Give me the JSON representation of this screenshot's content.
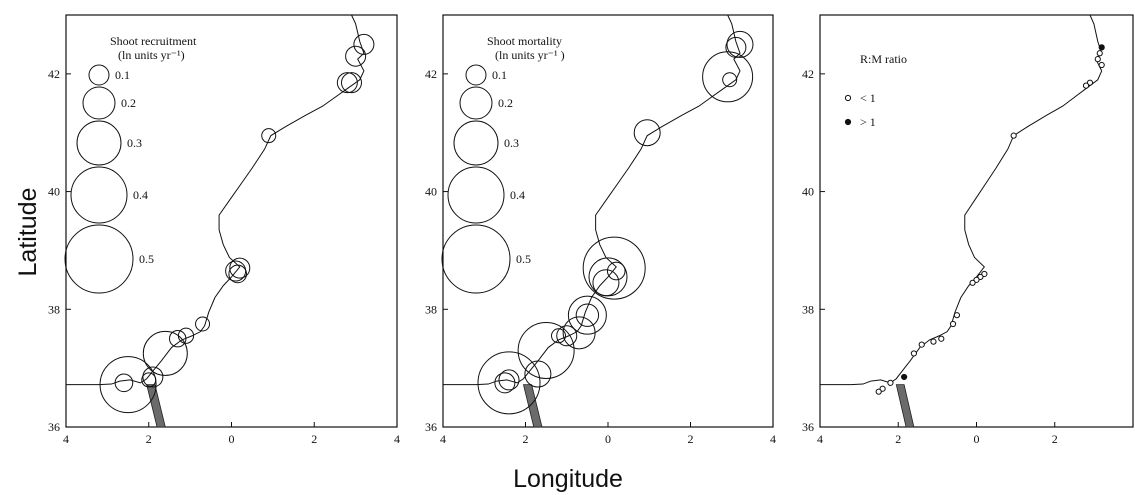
{
  "figure": {
    "ylabel": "Latitude",
    "xlabel": "Longitude"
  },
  "chart_data": [
    {
      "type": "scatter",
      "panel": "recruitment",
      "legend_title": "Shoot recruitment",
      "legend_subtitle": "(ln units yr⁻¹)",
      "size_legend": [
        0.1,
        0.2,
        0.3,
        0.4,
        0.5
      ],
      "x_ticks": [
        "4",
        "2",
        "0",
        "2",
        "4"
      ],
      "y_ticks": [
        "36",
        "38",
        "40",
        "42"
      ],
      "xlim": [
        -4,
        4
      ],
      "ylim": [
        36,
        43
      ],
      "points": [
        {
          "lon": 3.2,
          "lat": 42.5,
          "value": 0.1
        },
        {
          "lon": 3.0,
          "lat": 42.3,
          "value": 0.1
        },
        {
          "lon": 2.8,
          "lat": 41.85,
          "value": 0.1
        },
        {
          "lon": 2.9,
          "lat": 41.85,
          "value": 0.1
        },
        {
          "lon": 0.9,
          "lat": 40.95,
          "value": 0.05
        },
        {
          "lon": 0.2,
          "lat": 38.7,
          "value": 0.1
        },
        {
          "lon": 0.1,
          "lat": 38.65,
          "value": 0.1
        },
        {
          "lon": 0.15,
          "lat": 38.6,
          "value": 0.08
        },
        {
          "lon": -0.7,
          "lat": 37.75,
          "value": 0.05
        },
        {
          "lon": -1.1,
          "lat": 37.55,
          "value": 0.06
        },
        {
          "lon": -1.3,
          "lat": 37.5,
          "value": 0.07
        },
        {
          "lon": -1.6,
          "lat": 37.25,
          "value": 0.3
        },
        {
          "lon": -1.9,
          "lat": 36.85,
          "value": 0.1
        },
        {
          "lon": -2.0,
          "lat": 36.8,
          "value": 0.05
        },
        {
          "lon": -2.5,
          "lat": 36.72,
          "value": 0.4
        },
        {
          "lon": -2.6,
          "lat": 36.75,
          "value": 0.08
        }
      ]
    },
    {
      "type": "scatter",
      "panel": "mortality",
      "legend_title": "Shoot mortality",
      "legend_subtitle": "(ln units yr⁻¹ )",
      "size_legend": [
        0.1,
        0.2,
        0.3,
        0.4,
        0.5
      ],
      "x_ticks": [
        "4",
        "2",
        "0",
        "2",
        "4"
      ],
      "y_ticks": [
        "36",
        "38",
        "40",
        "42"
      ],
      "xlim": [
        -4,
        4
      ],
      "ylim": [
        36,
        43
      ],
      "points": [
        {
          "lon": 3.2,
          "lat": 42.5,
          "value": 0.15
        },
        {
          "lon": 3.1,
          "lat": 42.45,
          "value": 0.1
        },
        {
          "lon": 2.9,
          "lat": 41.95,
          "value": 0.35
        },
        {
          "lon": 2.95,
          "lat": 41.9,
          "value": 0.05
        },
        {
          "lon": 0.95,
          "lat": 41.0,
          "value": 0.15
        },
        {
          "lon": 0.15,
          "lat": 38.7,
          "value": 0.45
        },
        {
          "lon": 0.2,
          "lat": 38.65,
          "value": 0.08
        },
        {
          "lon": 0.0,
          "lat": 38.55,
          "value": 0.25
        },
        {
          "lon": -0.05,
          "lat": 38.45,
          "value": 0.15
        },
        {
          "lon": -0.5,
          "lat": 37.9,
          "value": 0.25
        },
        {
          "lon": -0.5,
          "lat": 37.9,
          "value": 0.12
        },
        {
          "lon": -0.7,
          "lat": 37.6,
          "value": 0.2
        },
        {
          "lon": -1.0,
          "lat": 37.55,
          "value": 0.1
        },
        {
          "lon": -1.2,
          "lat": 37.55,
          "value": 0.05
        },
        {
          "lon": -1.5,
          "lat": 37.3,
          "value": 0.4
        },
        {
          "lon": -1.7,
          "lat": 36.9,
          "value": 0.15
        },
        {
          "lon": -2.4,
          "lat": 36.75,
          "value": 0.45
        },
        {
          "lon": -2.4,
          "lat": 36.8,
          "value": 0.1
        },
        {
          "lon": -2.5,
          "lat": 36.75,
          "value": 0.1
        }
      ]
    },
    {
      "type": "scatter",
      "panel": "ratio",
      "legend_title": "R:M ratio",
      "legend_items": [
        {
          "label": "< 1",
          "filled": false
        },
        {
          "label": "> 1",
          "filled": true
        }
      ],
      "x_ticks": [
        "4",
        "2",
        "0",
        "2"
      ],
      "y_ticks": [
        "36",
        "38",
        "40",
        "42"
      ],
      "xlim": [
        -4,
        4
      ],
      "ylim": [
        36,
        43
      ],
      "points": [
        {
          "lon": 3.2,
          "lat": 42.45,
          "filled": true
        },
        {
          "lon": 3.15,
          "lat": 42.35,
          "filled": false
        },
        {
          "lon": 3.1,
          "lat": 42.25,
          "filled": false
        },
        {
          "lon": 3.2,
          "lat": 42.15,
          "filled": false
        },
        {
          "lon": 2.9,
          "lat": 41.85,
          "filled": false
        },
        {
          "lon": 2.8,
          "lat": 41.8,
          "filled": false
        },
        {
          "lon": 0.95,
          "lat": 40.95,
          "filled": false
        },
        {
          "lon": 0.2,
          "lat": 38.6,
          "filled": false
        },
        {
          "lon": 0.1,
          "lat": 38.55,
          "filled": false
        },
        {
          "lon": 0.0,
          "lat": 38.5,
          "filled": false
        },
        {
          "lon": -0.1,
          "lat": 38.45,
          "filled": false
        },
        {
          "lon": -0.5,
          "lat": 37.9,
          "filled": false
        },
        {
          "lon": -0.6,
          "lat": 37.75,
          "filled": false
        },
        {
          "lon": -0.9,
          "lat": 37.5,
          "filled": false
        },
        {
          "lon": -1.1,
          "lat": 37.45,
          "filled": false
        },
        {
          "lon": -1.4,
          "lat": 37.4,
          "filled": false
        },
        {
          "lon": -1.6,
          "lat": 37.25,
          "filled": false
        },
        {
          "lon": -1.85,
          "lat": 36.85,
          "filled": true
        },
        {
          "lon": -2.2,
          "lat": 36.75,
          "filled": false
        },
        {
          "lon": -2.4,
          "lat": 36.65,
          "filled": false
        },
        {
          "lon": -2.5,
          "lat": 36.6,
          "filled": false
        }
      ]
    }
  ]
}
